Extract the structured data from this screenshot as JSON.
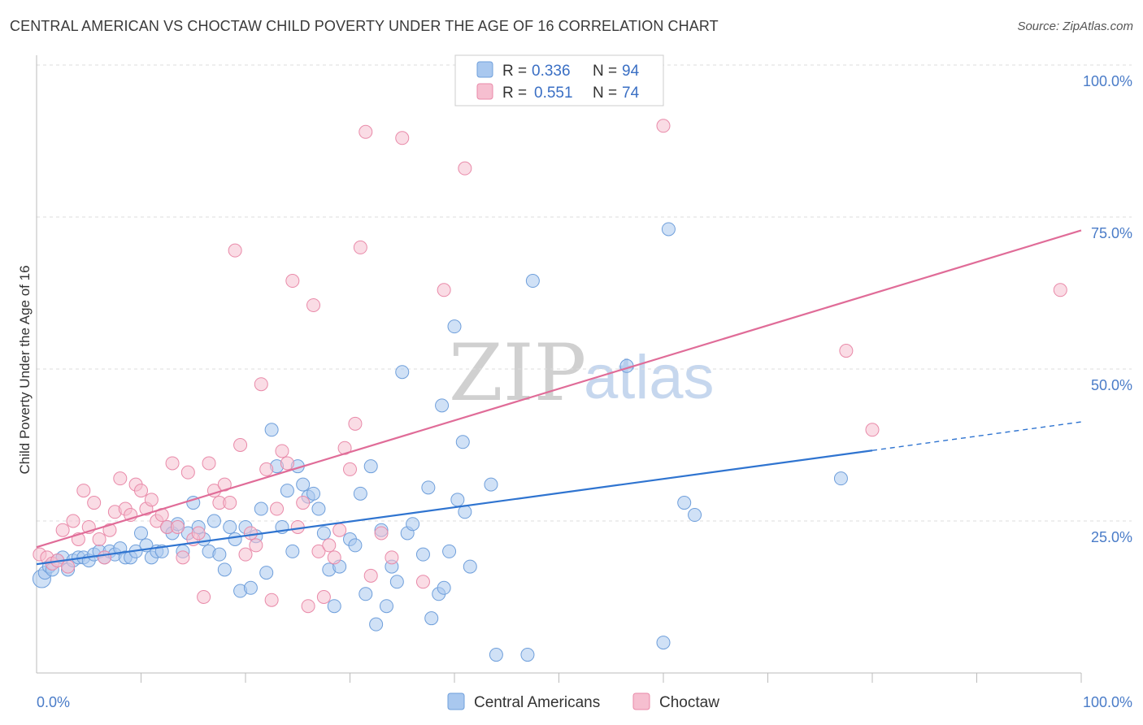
{
  "title": "CENTRAL AMERICAN VS CHOCTAW CHILD POVERTY UNDER THE AGE OF 16 CORRELATION CHART",
  "source": "Source: ZipAtlas.com",
  "watermark": {
    "zip": "ZIP",
    "atlas": "atlas"
  },
  "colors": {
    "blue_fill": "#a9c8ef",
    "blue_stroke": "#6f9fdb",
    "blue_line": "#2f74d0",
    "pink_fill": "#f6bfd0",
    "pink_stroke": "#e98aa9",
    "pink_line": "#e06c98",
    "grid": "#dddddd",
    "axis": "#bbbbbb"
  },
  "legend": {
    "rows": [
      {
        "r_label": "R = ",
        "r_value": "0.336",
        "n_label": "N = ",
        "n_value": "94"
      },
      {
        "r_label": "R = ",
        "r_value": "0.551",
        "n_label": "N = ",
        "n_value": "74"
      }
    ]
  },
  "chart_data": {
    "type": "scatter",
    "title": "CENTRAL AMERICAN VS CHOCTAW CHILD POVERTY UNDER THE AGE OF 16 CORRELATION CHART",
    "xlabel": "",
    "ylabel": "Child Poverty Under the Age of 16",
    "xlim": [
      0,
      100
    ],
    "ylim": [
      0,
      100
    ],
    "x_tick_labels": [
      "0.0%",
      "100.0%"
    ],
    "y_tick_labels": [
      "25.0%",
      "50.0%",
      "75.0%",
      "100.0%"
    ],
    "y_tick_values": [
      25,
      50,
      75,
      100
    ],
    "grid": true,
    "legend_position": "top-center",
    "series": [
      {
        "name": "Central Americans",
        "color": "#a9c8ef",
        "r": 0.336,
        "n": 94,
        "trend": {
          "x0": 0,
          "y0": 17.9,
          "x1": 80,
          "y1": 36.6,
          "dash_to_x": 100,
          "dash_to_y": 41.3
        },
        "points": [
          [
            0.5,
            15.5
          ],
          [
            0.8,
            16.5
          ],
          [
            1.2,
            17.5
          ],
          [
            1.5,
            17
          ],
          [
            2,
            18.5
          ],
          [
            2.5,
            19
          ],
          [
            3,
            17
          ],
          [
            3.5,
            18.5
          ],
          [
            4,
            19
          ],
          [
            4.5,
            19
          ],
          [
            5,
            18.5
          ],
          [
            5.5,
            19.5
          ],
          [
            6,
            20
          ],
          [
            6.5,
            19
          ],
          [
            7,
            20
          ],
          [
            7.5,
            19.5
          ],
          [
            8,
            20.5
          ],
          [
            8.5,
            19
          ],
          [
            9,
            19
          ],
          [
            9.5,
            20
          ],
          [
            10,
            23
          ],
          [
            10.5,
            21
          ],
          [
            11,
            19
          ],
          [
            11.5,
            20
          ],
          [
            12,
            20
          ],
          [
            12.5,
            24
          ],
          [
            13,
            23
          ],
          [
            13.5,
            24.5
          ],
          [
            14,
            20
          ],
          [
            14.5,
            23
          ],
          [
            15,
            28
          ],
          [
            15.5,
            24
          ],
          [
            16,
            22
          ],
          [
            16.5,
            20
          ],
          [
            17,
            25
          ],
          [
            17.5,
            19.5
          ],
          [
            18,
            17
          ],
          [
            18.5,
            24
          ],
          [
            19,
            22
          ],
          [
            19.5,
            13.5
          ],
          [
            20,
            24
          ],
          [
            20.5,
            14
          ],
          [
            21,
            22.5
          ],
          [
            21.5,
            27
          ],
          [
            22,
            16.5
          ],
          [
            22.5,
            40
          ],
          [
            23,
            34
          ],
          [
            23.5,
            24
          ],
          [
            24,
            30
          ],
          [
            24.5,
            20
          ],
          [
            25,
            34
          ],
          [
            25.5,
            31
          ],
          [
            26,
            29
          ],
          [
            26.5,
            29.5
          ],
          [
            27,
            27
          ],
          [
            27.5,
            23
          ],
          [
            28,
            17
          ],
          [
            28.5,
            11
          ],
          [
            29,
            17.5
          ],
          [
            30,
            22
          ],
          [
            30.5,
            21
          ],
          [
            31,
            29.5
          ],
          [
            31.5,
            13
          ],
          [
            32,
            34
          ],
          [
            32.5,
            8
          ],
          [
            33,
            23.5
          ],
          [
            33.5,
            11
          ],
          [
            34,
            17.5
          ],
          [
            34.5,
            15
          ],
          [
            35,
            49.5
          ],
          [
            35.5,
            23
          ],
          [
            36,
            24.5
          ],
          [
            37,
            19.5
          ],
          [
            37.5,
            30.5
          ],
          [
            37.8,
            9
          ],
          [
            38.5,
            13
          ],
          [
            38.8,
            44
          ],
          [
            39,
            14
          ],
          [
            39.5,
            20
          ],
          [
            40,
            57
          ],
          [
            40.3,
            28.5
          ],
          [
            40.8,
            38
          ],
          [
            41,
            26.5
          ],
          [
            41.5,
            17.5
          ],
          [
            43.5,
            31
          ],
          [
            44,
            3
          ],
          [
            47,
            3
          ],
          [
            47.5,
            64.5
          ],
          [
            56.5,
            50.5
          ],
          [
            60,
            5
          ],
          [
            60.5,
            73
          ],
          [
            62,
            28
          ],
          [
            63,
            26
          ],
          [
            77,
            32
          ]
        ]
      },
      {
        "name": "Choctaw",
        "color": "#f6bfd0",
        "r": 0.551,
        "n": 74,
        "trend": {
          "x0": 0,
          "y0": 20.7,
          "x1": 100,
          "y1": 72.8
        },
        "points": [
          [
            0.3,
            19.5
          ],
          [
            1,
            19
          ],
          [
            1.5,
            18
          ],
          [
            2,
            18.5
          ],
          [
            2.5,
            23.5
          ],
          [
            3,
            17.5
          ],
          [
            3.5,
            25
          ],
          [
            4,
            22
          ],
          [
            4.5,
            30
          ],
          [
            5,
            24
          ],
          [
            5.5,
            28
          ],
          [
            6,
            22
          ],
          [
            6.5,
            19
          ],
          [
            7,
            23.5
          ],
          [
            7.5,
            26.5
          ],
          [
            8,
            32
          ],
          [
            8.5,
            27
          ],
          [
            9,
            26
          ],
          [
            9.5,
            31
          ],
          [
            10,
            30
          ],
          [
            10.5,
            27
          ],
          [
            11,
            28.5
          ],
          [
            11.5,
            25
          ],
          [
            12,
            26
          ],
          [
            12.5,
            24
          ],
          [
            13,
            34.5
          ],
          [
            13.5,
            24
          ],
          [
            14,
            19
          ],
          [
            14.5,
            33
          ],
          [
            15,
            22
          ],
          [
            15.5,
            23
          ],
          [
            16,
            12.5
          ],
          [
            16.5,
            34.5
          ],
          [
            17,
            30
          ],
          [
            17.5,
            28
          ],
          [
            18,
            31
          ],
          [
            18.5,
            28
          ],
          [
            19,
            69.5
          ],
          [
            19.5,
            37.5
          ],
          [
            20,
            19.5
          ],
          [
            20.5,
            23
          ],
          [
            21,
            21
          ],
          [
            21.5,
            47.5
          ],
          [
            22,
            33.5
          ],
          [
            22.5,
            12
          ],
          [
            23,
            27
          ],
          [
            23.5,
            36.5
          ],
          [
            24,
            34.5
          ],
          [
            24.5,
            64.5
          ],
          [
            25,
            24
          ],
          [
            25.5,
            28
          ],
          [
            26,
            11
          ],
          [
            26.5,
            60.5
          ],
          [
            27,
            20
          ],
          [
            27.5,
            12.5
          ],
          [
            28,
            21
          ],
          [
            28.5,
            19
          ],
          [
            29,
            23.5
          ],
          [
            29.5,
            37
          ],
          [
            30,
            33.5
          ],
          [
            30.5,
            41
          ],
          [
            31,
            70
          ],
          [
            31.5,
            89
          ],
          [
            32,
            16
          ],
          [
            33,
            23
          ],
          [
            34,
            19
          ],
          [
            35,
            88
          ],
          [
            37,
            15
          ],
          [
            39,
            63
          ],
          [
            41,
            83
          ],
          [
            60,
            90
          ],
          [
            77.5,
            53
          ],
          [
            80,
            40
          ],
          [
            98,
            63
          ]
        ]
      }
    ]
  },
  "bottom_legend": [
    {
      "label": "Central Americans"
    },
    {
      "label": "Choctaw"
    }
  ]
}
